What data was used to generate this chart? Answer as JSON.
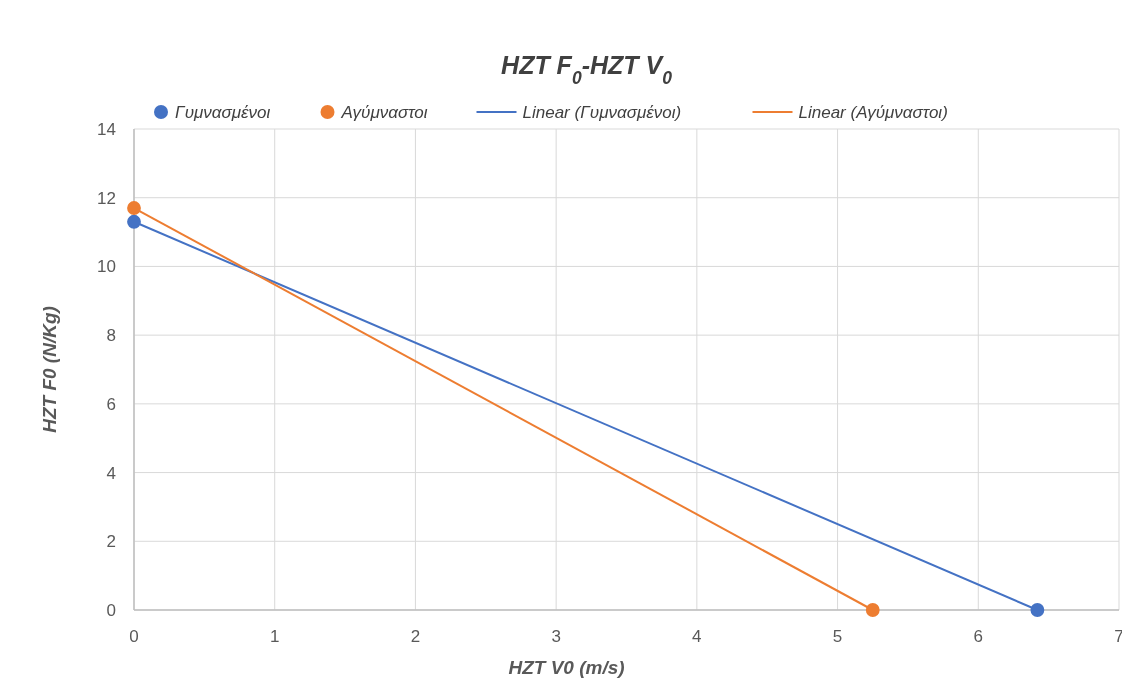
{
  "chart_data": {
    "type": "scatter",
    "title": "HZT F$_{0}$-HZT V$_{0}$",
    "xlabel": "HZT V0 (m/s)",
    "ylabel": "HZT F0 (N/Kg)",
    "xlim": [
      0,
      7
    ],
    "xticks": [
      0,
      1,
      2,
      3,
      4,
      5,
      6,
      7
    ],
    "ylim": [
      0,
      14
    ],
    "yticks": [
      0,
      2,
      4,
      6,
      8,
      10,
      12,
      14
    ],
    "grid": true,
    "legend": "top",
    "series": [
      {
        "name": "Γυμνασμένοι",
        "color": "#4472c4",
        "marker": "circle",
        "x": [
          0,
          6.42
        ],
        "values": [
          11.3,
          0
        ]
      },
      {
        "name": "Αγύμναστοι",
        "color": "#ed7d31",
        "marker": "circle",
        "x": [
          0,
          5.25
        ],
        "values": [
          11.7,
          0
        ]
      },
      {
        "name": "Linear (Γυμνασμένοι)",
        "type": "line",
        "color": "#4472c4",
        "x": [
          0,
          6.42
        ],
        "values": [
          11.3,
          0
        ]
      },
      {
        "name": "Linear (Αγύμναστοι)",
        "type": "line",
        "color": "#ed7d31",
        "x": [
          0,
          5.25
        ],
        "values": [
          11.7,
          0
        ]
      }
    ]
  }
}
